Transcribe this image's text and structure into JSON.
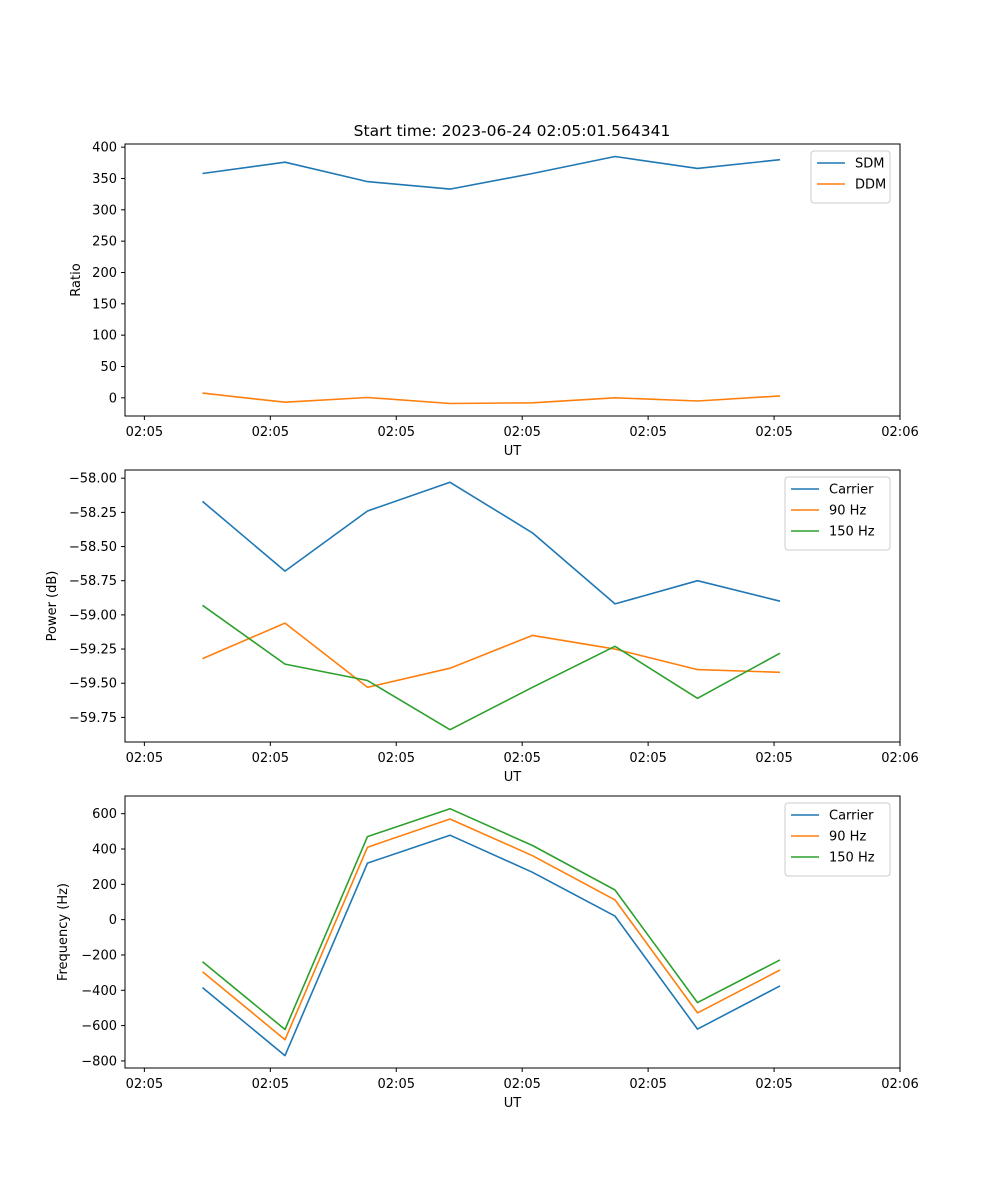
{
  "figure": {
    "title": "Start time: 2023-06-24 02:05:01.564341"
  },
  "chart_data": [
    {
      "type": "line",
      "title": "Start time: 2023-06-24 02:05:01.564341",
      "xlabel": "UT",
      "ylabel": "Ratio",
      "x_tick_labels": [
        "02:05",
        "02:05",
        "02:05",
        "02:05",
        "02:05",
        "02:05",
        "02:06"
      ],
      "y_ticks": [
        0,
        50,
        100,
        150,
        200,
        250,
        300,
        350,
        400
      ],
      "ylim": [
        -29,
        405
      ],
      "legend_position": "top-right",
      "grid": false,
      "series": [
        {
          "name": "SDM",
          "color": "#1f77b4",
          "values": [
            358,
            376,
            345,
            333,
            358,
            385,
            366,
            380
          ]
        },
        {
          "name": "DDM",
          "color": "#ff7f0e",
          "values": [
            7.5,
            -7,
            0.5,
            -9,
            -8,
            0,
            -5,
            3
          ]
        }
      ]
    },
    {
      "type": "line",
      "xlabel": "UT",
      "ylabel": "Power (dB)",
      "x_tick_labels": [
        "02:05",
        "02:05",
        "02:05",
        "02:05",
        "02:05",
        "02:05",
        "02:06"
      ],
      "y_ticks": [
        -59.75,
        -59.5,
        -59.25,
        -59.0,
        -58.75,
        -58.5,
        -58.25,
        -58.0
      ],
      "y_tick_labels": [
        "−59.75",
        "−59.50",
        "−59.25",
        "−59.00",
        "−58.75",
        "−58.50",
        "−58.25",
        "−58.00"
      ],
      "ylim": [
        -59.93,
        -57.94
      ],
      "legend_position": "top-right",
      "grid": false,
      "series": [
        {
          "name": "Carrier",
          "color": "#1f77b4",
          "values": [
            -58.17,
            -58.68,
            -58.24,
            -58.03,
            -58.4,
            -58.92,
            -58.75,
            -58.9
          ]
        },
        {
          "name": "90 Hz",
          "color": "#ff7f0e",
          "values": [
            -59.32,
            -59.06,
            -59.53,
            -59.39,
            -59.15,
            -59.25,
            -59.4,
            -59.42
          ]
        },
        {
          "name": "150 Hz",
          "color": "#2ca02c",
          "values": [
            -58.93,
            -59.36,
            -59.48,
            -59.84,
            -59.53,
            -59.23,
            -59.61,
            -59.28
          ]
        }
      ]
    },
    {
      "type": "line",
      "xlabel": "UT",
      "ylabel": "Frequency (Hz)",
      "x_tick_labels": [
        "02:05",
        "02:05",
        "02:05",
        "02:05",
        "02:05",
        "02:05",
        "02:06"
      ],
      "y_ticks": [
        -800,
        -600,
        -400,
        -200,
        0,
        200,
        400,
        600
      ],
      "y_tick_labels": [
        "−800",
        "−600",
        "−400",
        "−200",
        "0",
        "200",
        "400",
        "600"
      ],
      "ylim": [
        -840,
        700
      ],
      "legend_position": "top-right",
      "grid": false,
      "series": [
        {
          "name": "Carrier",
          "color": "#1f77b4",
          "values": [
            -385,
            -770,
            320,
            478,
            268,
            20,
            -620,
            -375
          ]
        },
        {
          "name": "90 Hz",
          "color": "#ff7f0e",
          "values": [
            -295,
            -680,
            410,
            570,
            362,
            112,
            -528,
            -285
          ]
        },
        {
          "name": "150 Hz",
          "color": "#2ca02c",
          "values": [
            -238,
            -622,
            470,
            628,
            420,
            168,
            -470,
            -228
          ]
        }
      ]
    }
  ]
}
